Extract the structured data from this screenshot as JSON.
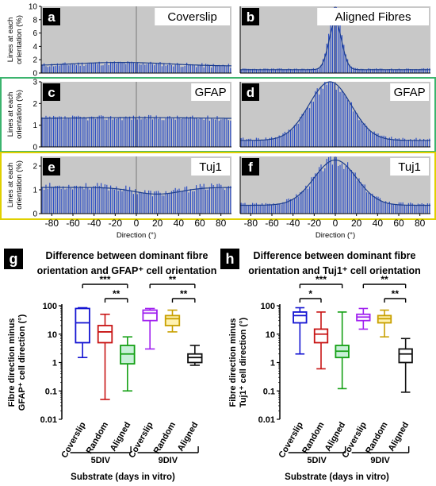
{
  "colors": {
    "plot_bg": "#c8c8c8",
    "bar": "#2d4fc4",
    "fit": "#1c3d8c",
    "green_box": "#3cb46e",
    "yellow_box": "#e0d000",
    "blue": "#1414d2",
    "red": "#c81414",
    "green": "#14a014",
    "purple": "#a020f0",
    "gold": "#c8a000",
    "black": "#111111"
  },
  "panels": [
    {
      "id": "a",
      "label": "Coverslip",
      "ymax": 10,
      "ticks": [
        0,
        2,
        4,
        6,
        8,
        10
      ],
      "ylabel": "Lines at each orientation (%)",
      "shape": "flat",
      "base": 1.05,
      "amp": 0.45,
      "bump_center": -15,
      "bump_width": 45,
      "noise": 0.35,
      "seed": 11,
      "fit_base": 1.05,
      "fit_amp": 0.55
    },
    {
      "id": "b",
      "label": "Aligned Fibres",
      "ymax": 10,
      "ticks": [],
      "ylabel": "",
      "shape": "peak",
      "base": 0.6,
      "amp": 9.0,
      "bump_center": 0,
      "bump_width": 6,
      "noise": 0.3,
      "seed": 23,
      "fit_base": 0.5,
      "fit_amp": 7.2
    },
    {
      "id": "c",
      "label": "GFAP",
      "ymax": 3,
      "ticks": [
        0,
        1,
        2,
        3
      ],
      "ylabel": "Lines at each orientation (%)",
      "shape": "flat",
      "base": 1.3,
      "amp": 0.05,
      "bump_center": 0,
      "bump_width": 60,
      "noise": 0.12,
      "seed": 37,
      "fit_base": 1.3,
      "fit_amp": 0.05
    },
    {
      "id": "d",
      "label": "GFAP",
      "ymax": 3,
      "ticks": [],
      "ylabel": "",
      "shape": "peak",
      "base": 0.35,
      "amp": 2.6,
      "bump_center": -5,
      "bump_width": 20,
      "noise": 0.2,
      "seed": 41,
      "fit_base": 0.3,
      "fit_amp": 2.7
    },
    {
      "id": "e",
      "label": "Tuj1",
      "ymax": 2.4,
      "ticks": [
        0,
        1,
        2
      ],
      "ylabel": "Lines at each orientation (%)",
      "shape": "dip",
      "base": 1.15,
      "amp": -0.3,
      "bump_center": 20,
      "bump_width": 22,
      "noise": 0.15,
      "seed": 53,
      "fit_base": 1.1,
      "fit_amp": -0.28
    },
    {
      "id": "f",
      "label": "Tuj1",
      "ymax": 2.4,
      "ticks": [],
      "ylabel": "",
      "shape": "peak",
      "base": 0.4,
      "amp": 1.85,
      "bump_center": 0,
      "bump_width": 20,
      "noise": 0.18,
      "seed": 67,
      "fit_base": 0.35,
      "fit_amp": 1.9
    }
  ],
  "x_axis": {
    "label": "Direction (°)",
    "ticks": [
      -80,
      -60,
      -40,
      -20,
      0,
      20,
      40,
      60,
      80
    ],
    "min": -90,
    "max": 90
  },
  "chart_data": [
    {
      "type": "box",
      "panel": "g",
      "title": "Difference between dominant fibre orientation and GFAP⁺ cell orientation",
      "ylabel": "Fibre direction minus GFAP⁺ cell direction (°)",
      "xlabel": "Substrate  (days in vitro)",
      "ylim": [
        0.01,
        100
      ],
      "yticks": [
        "0.01",
        "0.1",
        "1",
        "10",
        "100"
      ],
      "categories": [
        "Coverslip",
        "Random",
        "Aligned",
        "Coverslip",
        "Random",
        "Aligned"
      ],
      "groups": [
        "5DIV",
        "9DIV"
      ],
      "series": [
        {
          "min": 1.5,
          "q1": 5,
          "median": 25,
          "q3": 80,
          "max": 85
        },
        {
          "min": 0.05,
          "q1": 5,
          "median": 12,
          "q3": 20,
          "max": 50
        },
        {
          "min": 0.1,
          "q1": 0.9,
          "median": 2,
          "q3": 4,
          "max": 8
        },
        {
          "min": 3,
          "q1": 30,
          "median": 55,
          "q3": 70,
          "max": 80
        },
        {
          "min": 12,
          "q1": 20,
          "median": 35,
          "q3": 45,
          "max": 70
        },
        {
          "min": 0.8,
          "q1": 1,
          "median": 1.5,
          "q3": 2,
          "max": 4
        }
      ],
      "significance": [
        {
          "from": 0,
          "to": 2,
          "label": "***"
        },
        {
          "from": 1,
          "to": 2,
          "label": "**"
        },
        {
          "from": 3,
          "to": 5,
          "label": "**"
        },
        {
          "from": 4,
          "to": 5,
          "label": "**"
        }
      ]
    },
    {
      "type": "box",
      "panel": "h",
      "title": "Difference between dominant fibre orientation and Tuj1⁺ cell orientation",
      "ylabel": "Fibre direction minus Tuj1⁺ cell direction (°)",
      "xlabel": "Substrate  (days in vitro)",
      "ylim": [
        0.01,
        100
      ],
      "yticks": [
        "0.01",
        "0.1",
        "1",
        "10",
        "100"
      ],
      "categories": [
        "Coverslip",
        "Random",
        "Aligned",
        "Coverslip",
        "Random",
        "Aligned"
      ],
      "groups": [
        "5DIV",
        "9DIV"
      ],
      "series": [
        {
          "min": 2,
          "q1": 25,
          "median": 45,
          "q3": 60,
          "max": 85
        },
        {
          "min": 0.6,
          "q1": 5,
          "median": 10,
          "q3": 15,
          "max": 60
        },
        {
          "min": 0.12,
          "q1": 1.5,
          "median": 2.5,
          "q3": 4,
          "max": 60
        },
        {
          "min": 15,
          "q1": 30,
          "median": 40,
          "q3": 50,
          "max": 80
        },
        {
          "min": 8,
          "q1": 25,
          "median": 35,
          "q3": 45,
          "max": 70
        },
        {
          "min": 0.09,
          "q1": 1,
          "median": 2,
          "q3": 3,
          "max": 7
        }
      ],
      "significance": [
        {
          "from": 0,
          "to": 2,
          "label": "***"
        },
        {
          "from": 0,
          "to": 1,
          "label": "*"
        },
        {
          "from": 3,
          "to": 5,
          "label": "**"
        },
        {
          "from": 4,
          "to": 5,
          "label": "**"
        }
      ]
    }
  ]
}
